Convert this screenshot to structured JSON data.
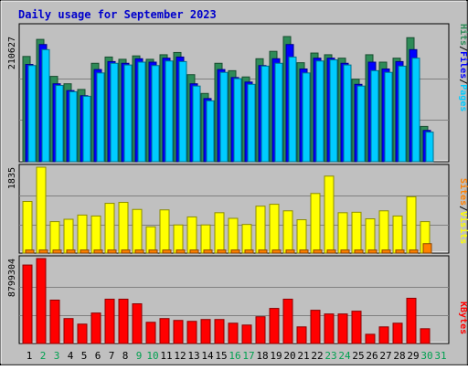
{
  "chart_data": [
    {
      "type": "bar",
      "title": "Daily usage for September 2023",
      "panel": "hits-files-pages",
      "ymax_label": "210627",
      "legend": [
        {
          "label": "Pages",
          "color": "#00ccff"
        },
        {
          "label": "/",
          "color": "#000000"
        },
        {
          "label": "Files",
          "color": "#0000ff"
        },
        {
          "label": "/",
          "color": "#000000"
        },
        {
          "label": "Hits",
          "color": "#2e8b57"
        }
      ],
      "categories": [
        "1",
        "2",
        "3",
        "4",
        "5",
        "6",
        "7",
        "8",
        "9",
        "10",
        "11",
        "12",
        "13",
        "14",
        "15",
        "16",
        "17",
        "18",
        "19",
        "20",
        "21",
        "22",
        "23",
        "24",
        "25",
        "26",
        "27",
        "28",
        "29",
        "30",
        "31"
      ],
      "weekend_days": [
        "2",
        "3",
        "9",
        "10",
        "16",
        "17",
        "23",
        "24",
        "30",
        "31"
      ],
      "series": [
        {
          "name": "Hits",
          "color": "#2e8b57",
          "values": [
            185000,
            215000,
            150000,
            137000,
            127000,
            173000,
            184000,
            180000,
            186000,
            180000,
            188000,
            192000,
            153000,
            120000,
            173000,
            160000,
            149000,
            181000,
            194000,
            220000,
            174000,
            191000,
            188000,
            182000,
            145000,
            188000,
            175000,
            182000,
            218000,
            62000,
            0
          ]
        },
        {
          "name": "Files",
          "color": "#0000ff",
          "values": [
            171000,
            206000,
            137000,
            125000,
            116000,
            162000,
            176000,
            173000,
            181000,
            175000,
            182000,
            184000,
            137000,
            111000,
            162000,
            148000,
            140000,
            169000,
            181000,
            206000,
            163000,
            182000,
            182000,
            173000,
            136000,
            175000,
            163000,
            176000,
            197000,
            55000,
            0
          ]
        },
        {
          "name": "Pages",
          "color": "#00ccff",
          "values": [
            169000,
            197000,
            134000,
            123000,
            115000,
            156000,
            173000,
            170000,
            175000,
            169000,
            177000,
            176000,
            133000,
            107000,
            157000,
            146000,
            136000,
            168000,
            173000,
            184000,
            156000,
            177000,
            179000,
            170000,
            133000,
            160000,
            157000,
            168000,
            182000,
            52000,
            0
          ]
        }
      ]
    },
    {
      "type": "bar",
      "panel": "visits-sites",
      "ymax_label": "1835",
      "legend": [
        {
          "label": "Visits",
          "color": "#ffff00"
        },
        {
          "label": "/",
          "color": "#000000"
        },
        {
          "label": "Sites",
          "color": "#ff8000"
        }
      ],
      "categories": [
        "1",
        "2",
        "3",
        "4",
        "5",
        "6",
        "7",
        "8",
        "9",
        "10",
        "11",
        "12",
        "13",
        "14",
        "15",
        "16",
        "17",
        "18",
        "19",
        "20",
        "21",
        "22",
        "23",
        "24",
        "25",
        "26",
        "27",
        "28",
        "29",
        "30",
        "31"
      ],
      "series": [
        {
          "name": "Visits",
          "color": "#ffff00",
          "values": [
            1100,
            1830,
            670,
            720,
            810,
            790,
            1060,
            1080,
            930,
            560,
            920,
            600,
            770,
            600,
            860,
            740,
            610,
            1000,
            1040,
            900,
            710,
            1270,
            1640,
            860,
            870,
            730,
            900,
            790,
            1200,
            670,
            0
          ]
        },
        {
          "name": "Sites",
          "color": "#ff8000",
          "values": [
            65,
            65,
            65,
            65,
            65,
            65,
            65,
            65,
            65,
            65,
            65,
            65,
            65,
            65,
            65,
            65,
            65,
            65,
            65,
            65,
            65,
            65,
            65,
            65,
            65,
            65,
            65,
            65,
            65,
            200,
            0
          ]
        }
      ]
    },
    {
      "type": "bar",
      "panel": "kbytes",
      "ymax_label": "8799304",
      "legend": [
        {
          "label": "KBytes",
          "color": "#ff0000"
        }
      ],
      "categories": [
        "1",
        "2",
        "3",
        "4",
        "5",
        "6",
        "7",
        "8",
        "9",
        "10",
        "11",
        "12",
        "13",
        "14",
        "15",
        "16",
        "17",
        "18",
        "19",
        "20",
        "21",
        "22",
        "23",
        "24",
        "25",
        "26",
        "27",
        "28",
        "29",
        "30",
        "31"
      ],
      "series": [
        {
          "name": "KBytes",
          "color": "#ff0000",
          "values": [
            8500000,
            9200000,
            4700000,
            2700000,
            2100000,
            3300000,
            4800000,
            4800000,
            4300000,
            2300000,
            2700000,
            2500000,
            2400000,
            2600000,
            2600000,
            2200000,
            2000000,
            2900000,
            3800000,
            4800000,
            1800000,
            3600000,
            3200000,
            3200000,
            3500000,
            1000000,
            1800000,
            2200000,
            4900000,
            1600000,
            0
          ]
        }
      ]
    }
  ]
}
